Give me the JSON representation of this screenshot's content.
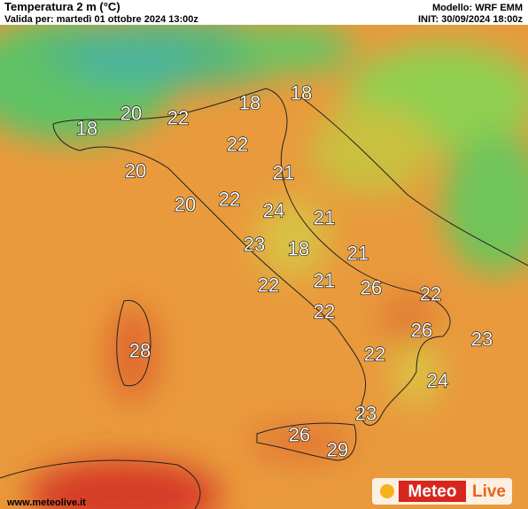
{
  "header": {
    "title": "Temperatura 2 m (°C)",
    "valid": "Valida per: martedì 01 ottobre 2024 13:00z",
    "model": "Modello: WRF EMM",
    "init": "INIT: 30/09/2024 18:00z"
  },
  "map": {
    "labels": [
      18,
      18,
      20,
      22,
      18,
      22,
      20,
      21,
      22,
      20,
      24,
      21,
      23,
      18,
      21,
      22,
      21,
      26,
      22,
      22,
      26,
      23,
      28,
      22,
      24,
      23,
      26,
      29
    ]
  },
  "logo": {
    "meteo": "Meteo",
    "live": "Live"
  },
  "footer": {
    "url": "www.meteolive.it"
  }
}
